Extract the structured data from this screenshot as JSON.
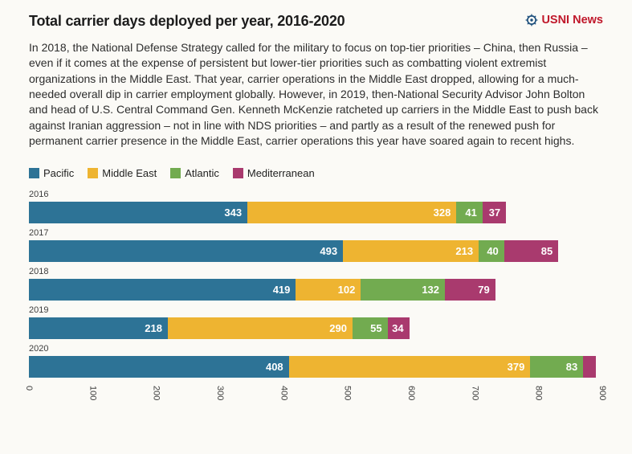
{
  "header": {
    "title": "Total carrier days deployed per year, 2016-2020",
    "brand": "USNI News"
  },
  "description": "In 2018, the National Defense Strategy called for the military to focus on top-tier priorities – China, then Russia – even if it comes at the expense of persistent but lower-tier priorities such as combatting violent extremist organizations in the Middle East. That year, carrier operations in the Middle East dropped, allowing for a much-needed overall dip in carrier employment globally. However, in 2019, then-National Security Advisor John Bolton and head of U.S. Central Command Gen. Kenneth McKenzie ratcheted up carriers in the Middle East to push back against Iranian aggression – not in line with NDS priorities – and partly as a result of the renewed push for permanent carrier presence in the Middle East, carrier operations this year have soared again to recent highs.",
  "colors": {
    "pacific": "#2d7396",
    "middle_east": "#eeb431",
    "atlantic": "#72ab50",
    "mediterranean": "#a93a6e",
    "brand_red": "#c0182b",
    "brand_blue": "#1d4f7c"
  },
  "legend": [
    {
      "label": "Pacific",
      "color": "#2d7396"
    },
    {
      "label": "Middle East",
      "color": "#eeb431"
    },
    {
      "label": "Atlantic",
      "color": "#72ab50"
    },
    {
      "label": "Mediterranean",
      "color": "#a93a6e"
    }
  ],
  "chart_data": {
    "type": "bar",
    "orientation": "horizontal",
    "stacked": true,
    "title": "Total carrier days deployed per year, 2016-2020",
    "categories": [
      "2016",
      "2017",
      "2018",
      "2019",
      "2020"
    ],
    "series": [
      {
        "name": "Pacific",
        "color": "#2d7396",
        "values": [
          343,
          493,
          419,
          218,
          408
        ]
      },
      {
        "name": "Middle East",
        "color": "#eeb431",
        "values": [
          328,
          213,
          102,
          290,
          379
        ]
      },
      {
        "name": "Atlantic",
        "color": "#72ab50",
        "values": [
          41,
          40,
          132,
          55,
          83
        ]
      },
      {
        "name": "Mediterranean",
        "color": "#a93a6e",
        "values": [
          37,
          85,
          79,
          34,
          20
        ]
      }
    ],
    "value_labels_shown_min": 25,
    "xlim": [
      0,
      900
    ],
    "xticks": [
      0,
      100,
      200,
      300,
      400,
      500,
      600,
      700,
      800,
      900
    ],
    "xtick_label_rotation": 90,
    "legend_position": "top",
    "grid": false
  }
}
